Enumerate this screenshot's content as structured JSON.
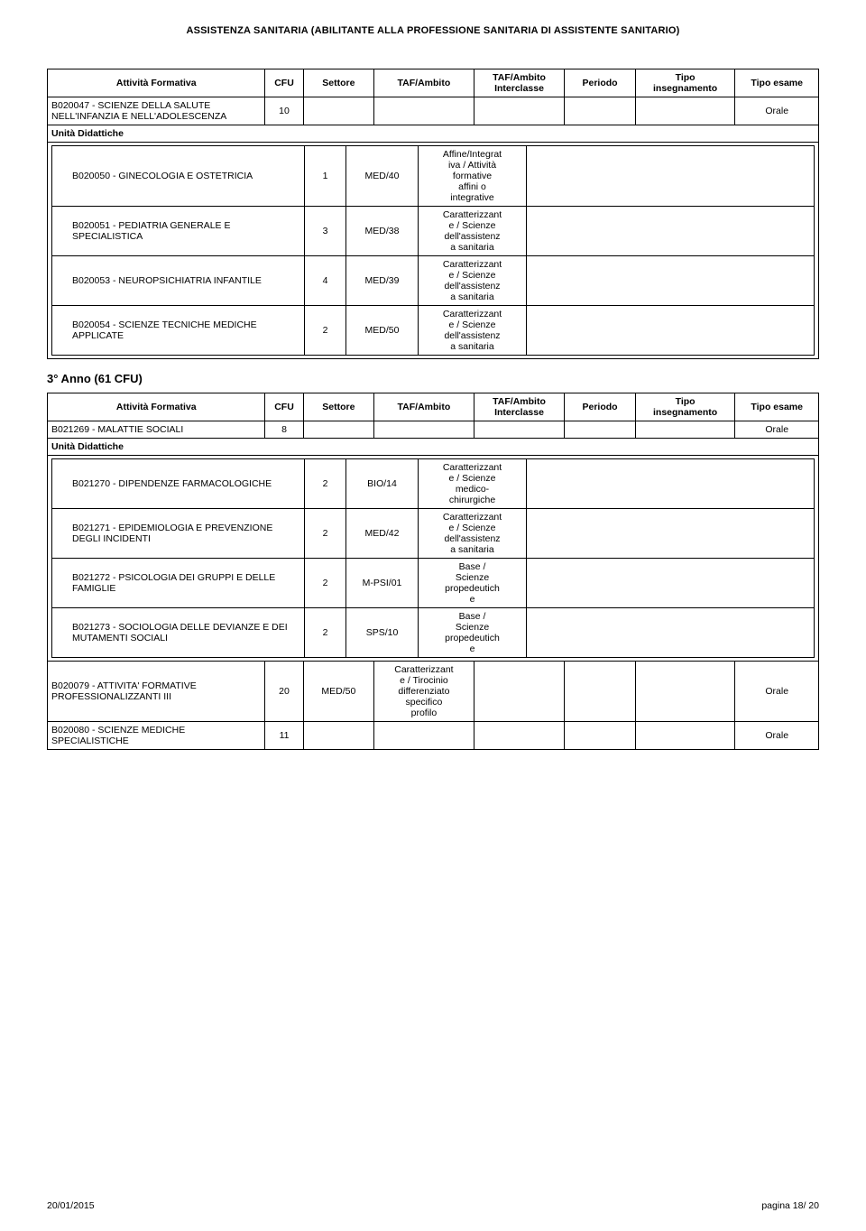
{
  "doc_title": "ASSISTENZA SANITARIA (ABILITANTE ALLA PROFESSIONE SANITARIA DI ASSISTENTE SANITARIO)",
  "headers": {
    "attivita": "Attività Formativa",
    "cfu": "CFU",
    "settore": "Settore",
    "taf": "TAF/Ambito",
    "tafi1": "TAF/Ambito",
    "tafi2": "Interclasse",
    "periodo": "Periodo",
    "tins1": "Tipo",
    "tins2": "insegnamento",
    "tesame": "Tipo esame"
  },
  "table1": {
    "unit_label": "Unità Didattiche",
    "row1": {
      "name": "B020047 - SCIENZE DELLA SALUTE NELL'INFANZIA E NELL'ADOLESCENZA",
      "cfu": "10",
      "esame": "Orale"
    },
    "subs": [
      {
        "name": "B020050 - GINECOLOGIA E OSTETRICIA",
        "cfu": "1",
        "set": "MED/40",
        "taf": "Affine/Integrat\niva / Attività\nformative\naffini o\nintegrative"
      },
      {
        "name": "B020051 - PEDIATRIA GENERALE E SPECIALISTICA",
        "cfu": "3",
        "set": "MED/38",
        "taf": "Caratterizzant\ne / Scienze\ndell'assistenz\na sanitaria"
      },
      {
        "name": "B020053 - NEUROPSICHIATRIA INFANTILE",
        "cfu": "4",
        "set": "MED/39",
        "taf": "Caratterizzant\ne / Scienze\ndell'assistenz\na sanitaria"
      },
      {
        "name": "B020054 - SCIENZE TECNICHE MEDICHE APPLICATE",
        "cfu": "2",
        "set": "MED/50",
        "taf": "Caratterizzant\ne / Scienze\ndell'assistenz\na sanitaria"
      }
    ]
  },
  "year3": "3° Anno (61 CFU)",
  "table2": {
    "unit_label": "Unità Didattiche",
    "row1": {
      "name": "B021269 - MALATTIE SOCIALI",
      "cfu": "8",
      "esame": "Orale"
    },
    "subs": [
      {
        "name": "B021270 - DIPENDENZE FARMACOLOGICHE",
        "cfu": "2",
        "set": "BIO/14",
        "taf": "Caratterizzant\ne / Scienze\nmedico-\nchirurgiche"
      },
      {
        "name": "B021271 - EPIDEMIOLOGIA E PREVENZIONE DEGLI INCIDENTI",
        "cfu": "2",
        "set": "MED/42",
        "taf": "Caratterizzant\ne / Scienze\ndell'assistenz\na sanitaria"
      },
      {
        "name": "B021272 - PSICOLOGIA DEI GRUPPI E DELLE FAMIGLIE",
        "cfu": "2",
        "set": "M-PSI/01",
        "taf": "Base /\nScienze\npropedeutich\ne"
      },
      {
        "name": "B021273 - SOCIOLOGIA DELLE DEVIANZE E DEI MUTAMENTI SOCIALI",
        "cfu": "2",
        "set": "SPS/10",
        "taf": "Base /\nScienze\npropedeutich\ne"
      }
    ],
    "row2": {
      "name": "B020079 - ATTIVITA' FORMATIVE PROFESSIONALIZZANTI III",
      "cfu": "20",
      "set": "MED/50",
      "taf": "Caratterizzant\ne / Tirocinio\ndifferenziato\nspecifico\nprofilo",
      "esame": "Orale"
    },
    "row3": {
      "name": "B020080 - SCIENZE MEDICHE SPECIALISTICHE",
      "cfu": "11",
      "esame": "Orale"
    }
  },
  "footer": {
    "date": "20/01/2015",
    "page": "pagina 18/ 20"
  }
}
